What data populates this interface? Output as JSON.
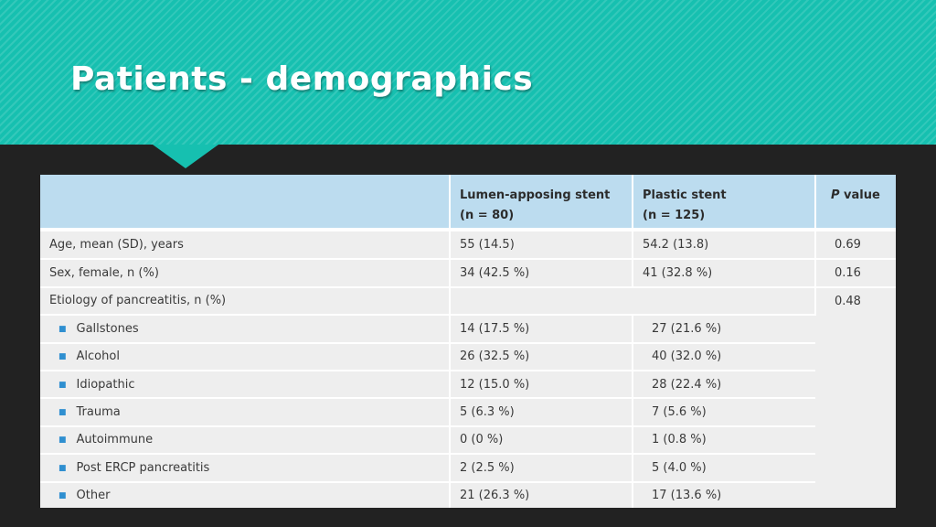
{
  "slide": {
    "title": "Patients - demographics"
  },
  "table": {
    "headers": {
      "col1": "",
      "col2_line1": "Lumen-apposing stent",
      "col2_line2": "(n = 80)",
      "col3_line1": "Plastic stent",
      "col3_line2": "(n = 125)",
      "col4_italic": "P",
      "col4_rest": " value"
    },
    "rows": [
      {
        "label": "Age, mean (SD), years",
        "lams": "55 (14.5)",
        "plastic": "54.2 (13.8)",
        "p": "0.69"
      },
      {
        "label": "Sex, female, n (%)",
        "lams": "34 (42.5 %)",
        "plastic": "41 (32.8 %)",
        "p": "0.16"
      },
      {
        "label": "Etiology of pancreatitis, n (%)",
        "lams": "",
        "plastic": "",
        "p": "0.48"
      }
    ],
    "subrows": [
      {
        "label": "Gallstones",
        "lams": "14 (17.5 %)",
        "plastic": "27 (21.6 %)"
      },
      {
        "label": "Alcohol",
        "lams": "26 (32.5 %)",
        "plastic": "40 (32.0 %)"
      },
      {
        "label": "Idiopathic",
        "lams": "12 (15.0 %)",
        "plastic": "28 (22.4 %)"
      },
      {
        "label": "Trauma",
        "lams": "5 (6.3 %)",
        "plastic": "7 (5.6 %)"
      },
      {
        "label": "Autoimmune",
        "lams": "0 (0 %)",
        "plastic": "1 (0.8 %)"
      },
      {
        "label": "Post ERCP pancreatitis",
        "lams": "2 (2.5 %)",
        "plastic": "5 (4.0 %)"
      },
      {
        "label": "Other",
        "lams": "21 (26.3 %)",
        "plastic": "17 (13.6 %)"
      }
    ]
  }
}
